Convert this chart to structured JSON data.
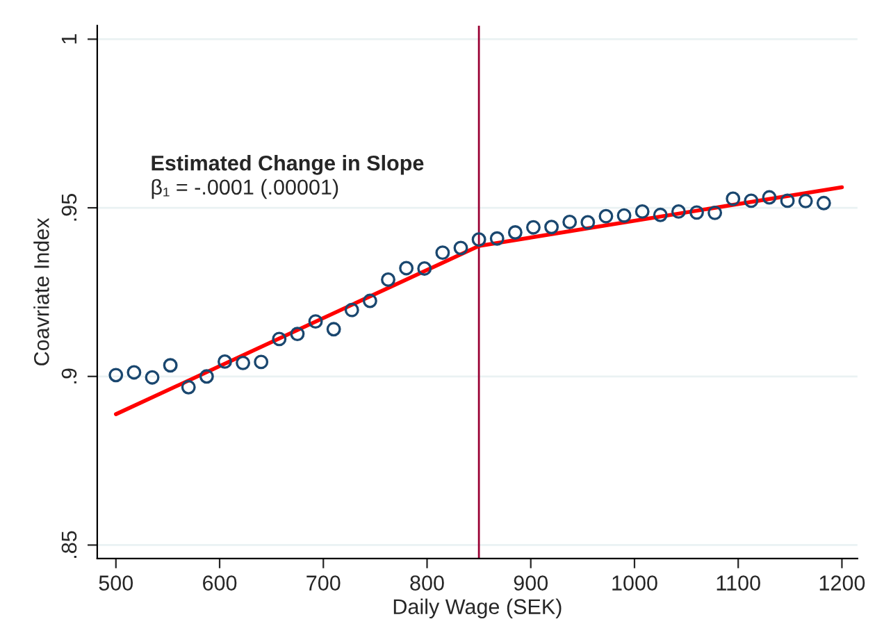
{
  "chart_data": {
    "type": "scatter",
    "xlabel": "Daily Wage (SEK)",
    "ylabel": "Coavriate Index",
    "x": [
      500,
      517.5,
      535,
      552.5,
      570,
      587.5,
      605,
      622.5,
      640,
      657.5,
      675,
      692.5,
      710,
      727.5,
      745,
      762.5,
      780,
      797.5,
      815,
      832.5,
      850,
      867.5,
      885,
      902.5,
      920,
      937.5,
      955,
      972.5,
      990,
      1007.5,
      1025,
      1042.5,
      1060,
      1077.5,
      1095,
      1112.5,
      1130,
      1147.5,
      1165,
      1182.5
    ],
    "series": [
      {
        "color": "#1a476f",
        "marker": "circle",
        "values": [
          0.9004,
          0.9012,
          0.8997,
          0.9033,
          0.8968,
          0.9,
          0.9044,
          0.904,
          0.9043,
          0.9111,
          0.9126,
          0.9163,
          0.914,
          0.9197,
          0.9224,
          0.9287,
          0.9321,
          0.932,
          0.9367,
          0.9381,
          0.9406,
          0.9409,
          0.9427,
          0.9442,
          0.9443,
          0.9458,
          0.9457,
          0.9475,
          0.9477,
          0.9489,
          0.9479,
          0.9489,
          0.9486,
          0.9485,
          0.9527,
          0.9521,
          0.9531,
          0.9521,
          0.952,
          0.9514
        ]
      },
      {
        "type": "line",
        "color": "#ff0000",
        "x": [
          500,
          850
        ],
        "values": [
          0.8888,
          0.9387
        ]
      },
      {
        "type": "line",
        "color": "#ff0000",
        "x": [
          850,
          1200
        ],
        "values": [
          0.9387,
          0.9561
        ]
      }
    ],
    "xlim": [
      482,
      1215
    ],
    "ylim": [
      0.846,
      1.004
    ],
    "xticks": [
      500,
      600,
      700,
      800,
      900,
      1000,
      1100,
      1200
    ],
    "yticks": [
      {
        "value": 0.85,
        "label": ".85"
      },
      {
        "value": 0.9,
        "label": ".9"
      },
      {
        "value": 0.95,
        "label": ".95"
      },
      {
        "value": 1,
        "label": "1"
      }
    ],
    "ref_lines": [
      {
        "axis": "x",
        "value": 850,
        "color": "#990033"
      }
    ],
    "annotations": [
      "Estimated Change in Slope",
      "β₁ = -.0001 (.00001)"
    ],
    "grid": "y",
    "legend": false
  }
}
